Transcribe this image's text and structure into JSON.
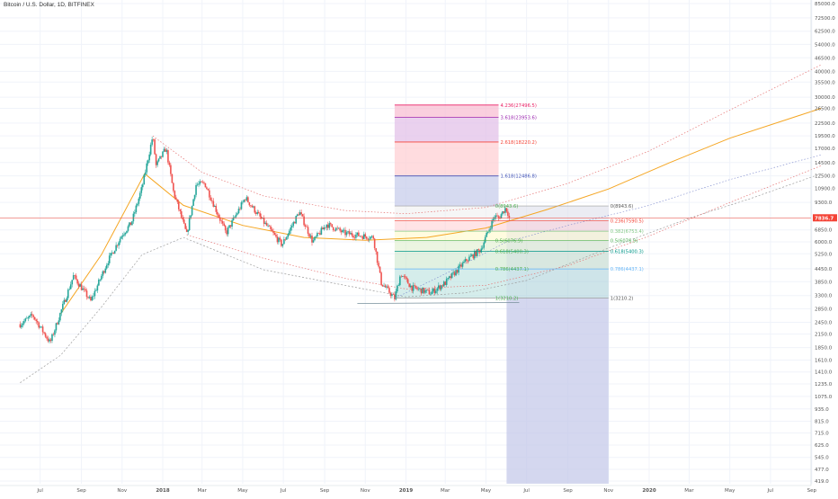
{
  "symbol_title": "Bitcoin / U.S. Dollar, 1D, BITFINEX",
  "colors": {
    "up_candle": "#26a69a",
    "down_candle": "#ef5350",
    "current_price_line": "#f44336",
    "arc_orange": "#f5a623",
    "arc_red": "#e57373",
    "arc_grey": "#9e9e9e",
    "grid": "#f0f3fa"
  },
  "current_price_label": "7836.7",
  "chart_data": {
    "type": "candlestick",
    "price_axis_scale": "log",
    "price_ticks": [
      "85000.0",
      "72500.0",
      "62500.0",
      "54000.0",
      "46500.0",
      "40000.0",
      "35500.0",
      "30000.0",
      "26500.0",
      "22500.0",
      "19500.0",
      "17000.0",
      "14500.0",
      "12500.0",
      "10900.0",
      "9300.0",
      "7836.7",
      "6850.0",
      "6000.0",
      "5250.0",
      "4450.0",
      "3850.0",
      "3300.0",
      "2850.0",
      "2450.0",
      "2150.0",
      "1850.0",
      "1610.0",
      "1410.0",
      "1235.0",
      "1075.0",
      "935.0",
      "815.0",
      "715.0",
      "625.0",
      "545.0",
      "477.0",
      "419.0"
    ],
    "time_ticks": [
      "Jul",
      "Sep",
      "Nov",
      "2018",
      "Mar",
      "May",
      "Jul",
      "Sep",
      "Nov",
      "2019",
      "Mar",
      "May",
      "Jul",
      "Sep",
      "Nov",
      "2020",
      "Mar",
      "May",
      "Jul",
      "Sep"
    ],
    "price_path": [
      [
        "2017-06-01",
        2400
      ],
      [
        "2017-06-20",
        2650
      ],
      [
        "2017-07-16",
        1950
      ],
      [
        "2017-08-01",
        2750
      ],
      [
        "2017-08-20",
        4100
      ],
      [
        "2017-09-15",
        3100
      ],
      [
        "2017-10-10",
        4800
      ],
      [
        "2017-11-01",
        6500
      ],
      [
        "2017-11-15",
        7400
      ],
      [
        "2017-12-01",
        11000
      ],
      [
        "2017-12-17",
        19500
      ],
      [
        "2017-12-22",
        14000
      ],
      [
        "2018-01-06",
        17000
      ],
      [
        "2018-01-17",
        10500
      ],
      [
        "2018-02-06",
        6500
      ],
      [
        "2018-02-20",
        11300
      ],
      [
        "2018-03-05",
        11500
      ],
      [
        "2018-04-06",
        6600
      ],
      [
        "2018-05-05",
        9800
      ],
      [
        "2018-06-01",
        7500
      ],
      [
        "2018-06-29",
        5800
      ],
      [
        "2018-07-25",
        8400
      ],
      [
        "2018-08-14",
        6000
      ],
      [
        "2018-09-04",
        7300
      ],
      [
        "2018-10-01",
        6600
      ],
      [
        "2018-11-13",
        6300
      ],
      [
        "2018-11-25",
        3800
      ],
      [
        "2018-12-15",
        3200
      ],
      [
        "2018-12-24",
        4200
      ],
      [
        "2019-01-10",
        3600
      ],
      [
        "2019-02-07",
        3400
      ],
      [
        "2019-03-01",
        3800
      ],
      [
        "2019-04-02",
        4900
      ],
      [
        "2019-04-23",
        5500
      ],
      [
        "2019-05-14",
        8000
      ],
      [
        "2019-05-20",
        7800
      ],
      [
        "2019-05-30",
        8700
      ],
      [
        "2019-06-02",
        8500
      ],
      [
        "2019-06-05",
        7836.7
      ]
    ],
    "fib_retracement": {
      "levels": [
        {
          "ratio": "0",
          "price": "8943.6",
          "color": "#9e9e9e"
        },
        {
          "ratio": "0.236",
          "price": "7590.5",
          "color": "#f44336"
        },
        {
          "ratio": "0.382",
          "price": "6753.4",
          "color": "#81c784"
        },
        {
          "ratio": "0.5",
          "price": "6076.9",
          "color": "#4caf50"
        },
        {
          "ratio": "0.618",
          "price": "5400.3",
          "color": "#009688"
        },
        {
          "ratio": "0.786",
          "price": "4437.1",
          "color": "#64b5f6"
        },
        {
          "ratio": "1",
          "price": "3210.2",
          "color": "#9e9e9e"
        }
      ]
    },
    "fib_extension_bottom": {
      "levels": [
        {
          "ratio": "0.5",
          "price": "6076.9"
        },
        {
          "ratio": "0.618",
          "price": "5400.3"
        },
        {
          "ratio": "0.786",
          "price": "4437.1"
        },
        {
          "ratio": "0",
          "price": "8943.6"
        },
        {
          "ratio": "1",
          "price": "3210.2"
        }
      ]
    },
    "fib_extension": {
      "levels": [
        {
          "ratio": "4.236",
          "price": "27496.5",
          "color": "#e91e63"
        },
        {
          "ratio": "3.618",
          "price": "23953.6",
          "color": "#9c27b0"
        },
        {
          "ratio": "2.618",
          "price": "18220.2",
          "color": "#f44336"
        },
        {
          "ratio": "1.618",
          "price": "12486.8",
          "color": "#3f51b5"
        }
      ]
    }
  }
}
